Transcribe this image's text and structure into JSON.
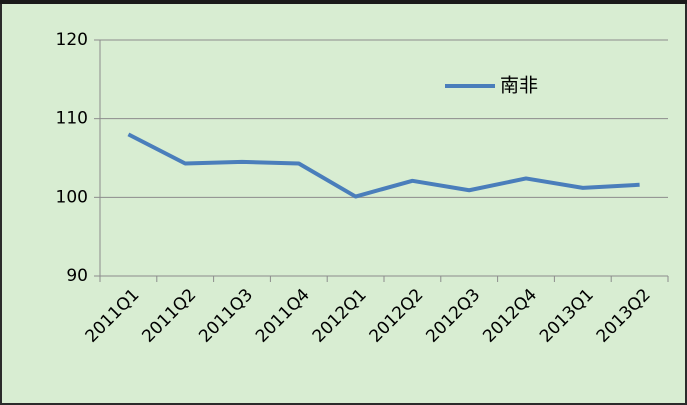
{
  "chart_data": {
    "type": "line",
    "categories": [
      "2011Q1",
      "2011Q2",
      "2011Q3",
      "2011Q4",
      "2012Q1",
      "2012Q2",
      "2012Q3",
      "2012Q4",
      "2013Q1",
      "2013Q2"
    ],
    "series": [
      {
        "name": "南非",
        "color": "#4a7ebb",
        "values": [
          108,
          104.3,
          104.5,
          104.3,
          100.1,
          102.1,
          100.9,
          102.4,
          101.2,
          101.6
        ]
      }
    ],
    "ylim": [
      90,
      120
    ],
    "yticks": [
      90,
      100,
      110,
      120
    ],
    "grid": true,
    "legend": "top-right"
  }
}
